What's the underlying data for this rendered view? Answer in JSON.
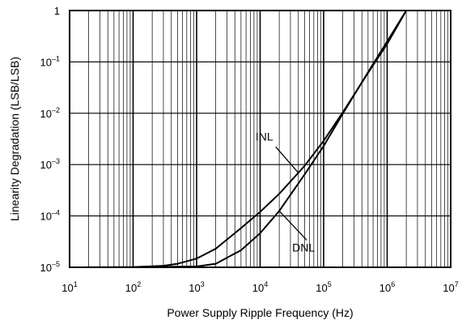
{
  "chart_data": {
    "type": "line",
    "title": "",
    "xlabel": "Power Supply Ripple Frequency (Hz)",
    "ylabel": "Linearity Degradation (LSB/LSB)",
    "x_scale": "log",
    "y_scale": "log",
    "xlim": [
      10,
      10000000
    ],
    "ylim": [
      1e-05,
      1
    ],
    "grid": true,
    "x_ticks": [
      {
        "base": "10",
        "exp": "1"
      },
      {
        "base": "10",
        "exp": "2"
      },
      {
        "base": "10",
        "exp": "3"
      },
      {
        "base": "10",
        "exp": "4"
      },
      {
        "base": "10",
        "exp": "5"
      },
      {
        "base": "10",
        "exp": "6"
      },
      {
        "base": "10",
        "exp": "7"
      }
    ],
    "y_ticks": [
      {
        "base": "1",
        "exp": ""
      },
      {
        "base": "10",
        "exp": "–1"
      },
      {
        "base": "10",
        "exp": "–2"
      },
      {
        "base": "10",
        "exp": "–3"
      },
      {
        "base": "10",
        "exp": "–4"
      },
      {
        "base": "10",
        "exp": "–5"
      }
    ],
    "series": [
      {
        "name": "INL",
        "x": [
          10,
          100,
          300,
          500,
          1000,
          2000,
          5000,
          10000,
          20000,
          50000,
          100000,
          200000,
          500000,
          1000000,
          2000000
        ],
        "y": [
          1e-05,
          1.01e-05,
          1.07e-05,
          1.17e-05,
          1.48e-05,
          2.3e-05,
          5.8e-05,
          0.00012,
          0.00027,
          0.00094,
          0.0029,
          0.0104,
          0.061,
          0.224,
          1
        ]
      },
      {
        "name": "DNL",
        "x": [
          10,
          100,
          1000,
          2000,
          5000,
          10000,
          20000,
          50000,
          100000,
          200000,
          500000,
          1000000,
          2000000
        ],
        "y": [
          1e-05,
          1e-05,
          1.04e-05,
          1.17e-05,
          2.15e-05,
          4.6e-05,
          0.000125,
          0.00064,
          0.0023,
          0.0098,
          0.063,
          0.25,
          1
        ]
      }
    ],
    "annotations": [
      {
        "text": "INL",
        "series": "INL",
        "at_x": 40000
      },
      {
        "text": "DNL",
        "series": "DNL",
        "at_x": 20000
      }
    ]
  }
}
